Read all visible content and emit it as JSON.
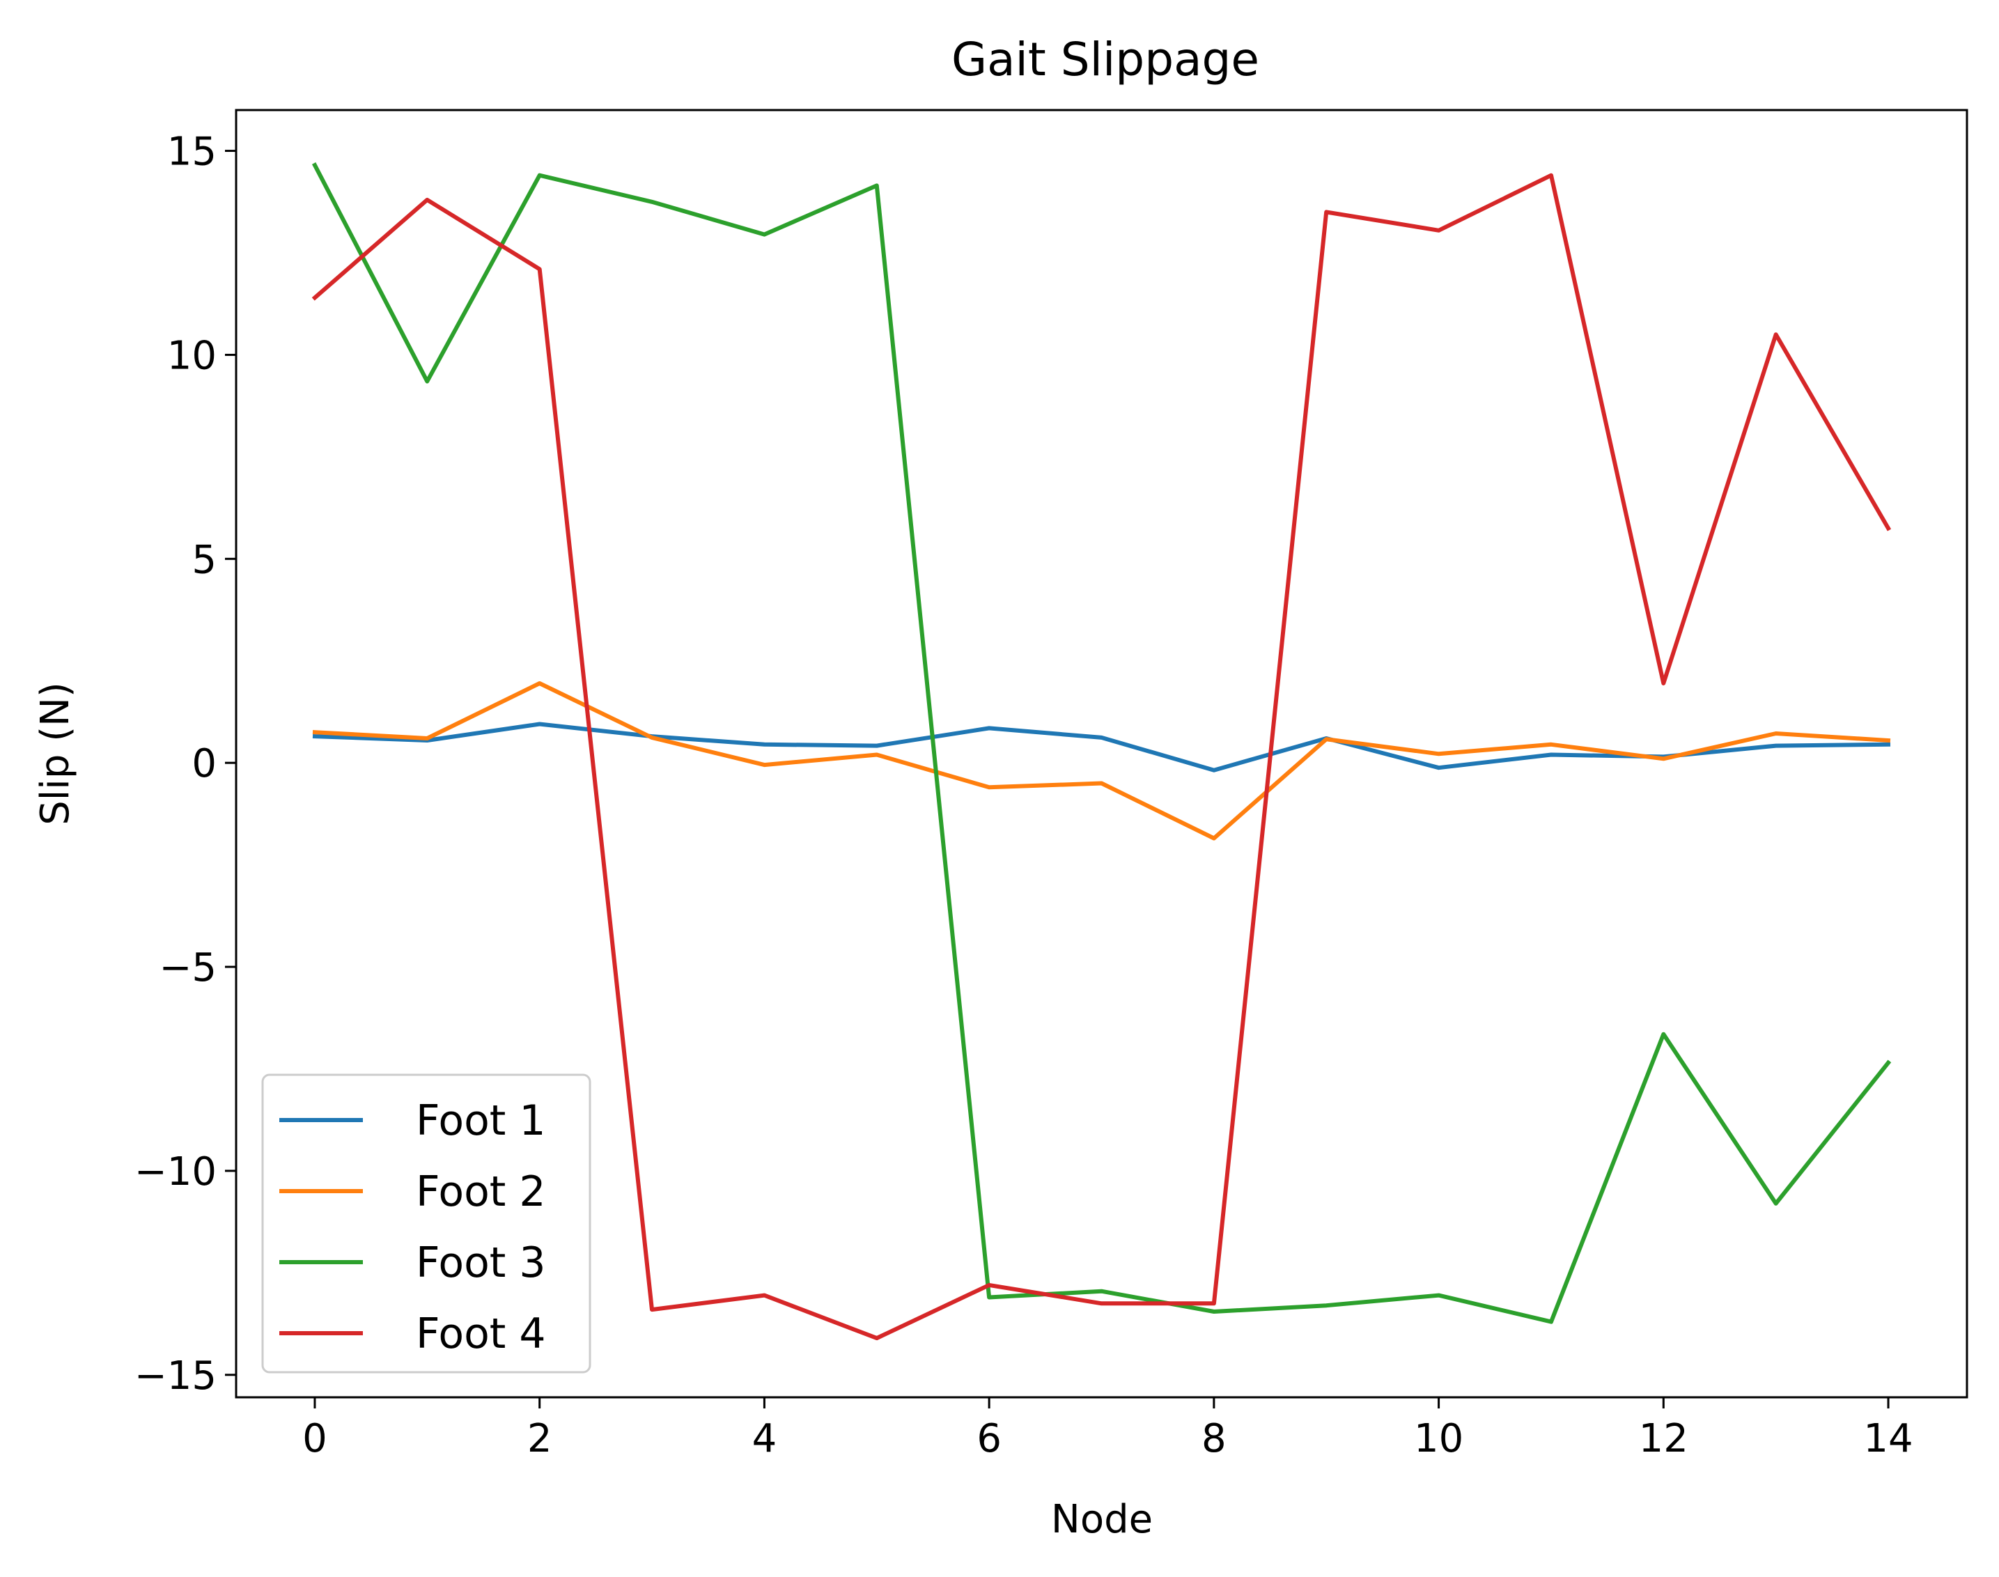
{
  "chart_data": {
    "type": "line",
    "title": "Gait Slippage",
    "xlabel": "Node",
    "ylabel": "Slip (N)",
    "xlim": [
      -0.7,
      14.7
    ],
    "ylim": [
      -15.55,
      16.0
    ],
    "xticks": [
      0,
      2,
      4,
      6,
      8,
      10,
      12,
      14
    ],
    "xtick_labels": [
      "0",
      "2",
      "4",
      "6",
      "8",
      "10",
      "12",
      "14"
    ],
    "yticks": [
      -15,
      -10,
      -5,
      0,
      5,
      10,
      15
    ],
    "ytick_labels": [
      "−15",
      "−10",
      "−5",
      "0",
      "5",
      "10",
      "15"
    ],
    "grid": false,
    "legend_position": "lower-left",
    "x": [
      0,
      1,
      2,
      3,
      4,
      5,
      6,
      7,
      8,
      9,
      10,
      11,
      12,
      13,
      14
    ],
    "series": [
      {
        "name": "Foot 1",
        "color": "#1f77b4",
        "values": [
          0.65,
          0.55,
          0.95,
          0.65,
          0.45,
          0.42,
          0.85,
          0.62,
          -0.18,
          0.6,
          -0.12,
          0.2,
          0.15,
          0.42,
          0.45
        ]
      },
      {
        "name": "Foot 2",
        "color": "#ff7f0e",
        "values": [
          0.75,
          0.6,
          1.95,
          0.62,
          -0.05,
          0.2,
          -0.6,
          -0.5,
          -1.85,
          0.58,
          0.22,
          0.45,
          0.1,
          0.72,
          0.55
        ]
      },
      {
        "name": "Foot 3",
        "color": "#2ca02c",
        "values": [
          14.65,
          9.35,
          14.4,
          13.75,
          12.95,
          14.15,
          -13.1,
          -12.95,
          -13.45,
          -13.3,
          -13.05,
          -13.7,
          -6.65,
          -10.8,
          -7.35
        ]
      },
      {
        "name": "Foot 4",
        "color": "#d62728",
        "values": [
          11.4,
          13.8,
          12.1,
          -13.4,
          -13.05,
          -14.1,
          -12.8,
          -13.25,
          -13.25,
          13.5,
          13.05,
          14.4,
          1.95,
          10.5,
          5.75
        ]
      }
    ]
  }
}
